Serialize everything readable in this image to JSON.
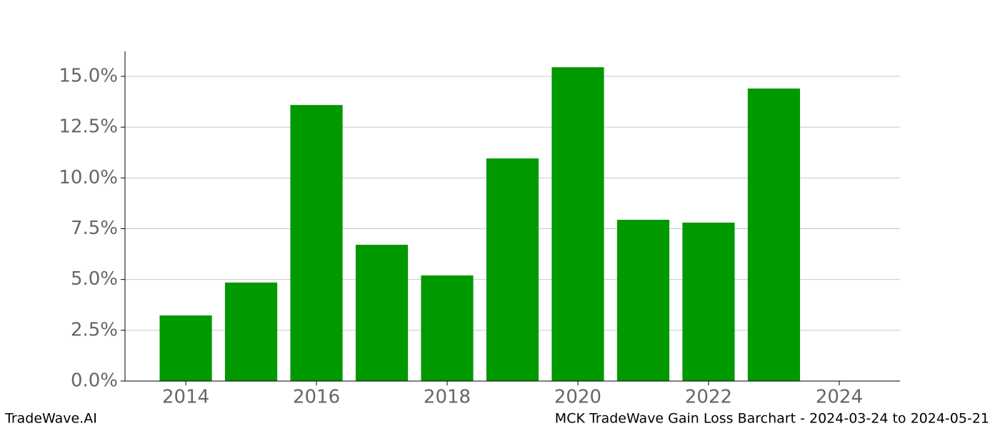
{
  "chart_data": {
    "type": "bar",
    "title": "MCK TradeWave Gain Loss Barchart - 2024-03-24 to 2024-05-21",
    "watermark": "TradeWave.AI",
    "x": [
      2014,
      2015,
      2016,
      2017,
      2018,
      2019,
      2020,
      2021,
      2022,
      2023
    ],
    "values": [
      3.23,
      4.85,
      13.59,
      6.71,
      5.2,
      10.96,
      15.45,
      7.94,
      7.8,
      14.4
    ],
    "color": "#009900",
    "xlim": [
      2013.07,
      2024.93
    ],
    "xticks": [
      2014,
      2016,
      2018,
      2020,
      2022,
      2024
    ],
    "ylim": [
      0,
      16.23
    ],
    "yticks": [
      {
        "value": 0,
        "label": "0.0%"
      },
      {
        "value": 2.5,
        "label": "2.5%"
      },
      {
        "value": 5,
        "label": "5.0%"
      },
      {
        "value": 7.5,
        "label": "7.5%"
      },
      {
        "value": 10,
        "label": "10.0%"
      },
      {
        "value": 12.5,
        "label": "12.5%"
      },
      {
        "value": 15,
        "label": "15.0%"
      }
    ],
    "grid": true
  }
}
